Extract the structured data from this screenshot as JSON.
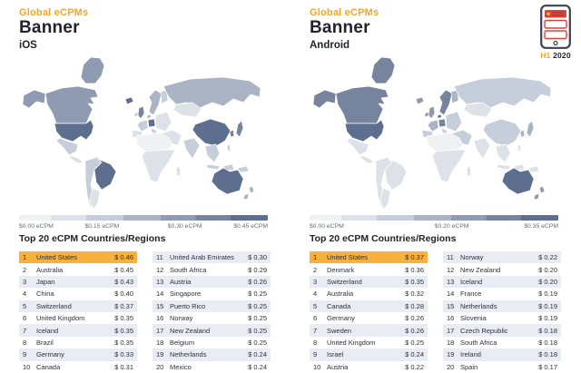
{
  "currency_prefix": "$ ",
  "badge": {
    "h1_label": "H1",
    "year_label": "2020"
  },
  "accent_orange": "#f5a623",
  "highlight_row_color": "#f8b13c",
  "palette": {
    "L0": "#eff1f4",
    "L1": "#dde2e9",
    "L2": "#c7cedb",
    "L3": "#aab4c5",
    "L4": "#8f9bb1",
    "L5": "#76849e",
    "L6": "#5d6e8e"
  },
  "panels": [
    {
      "id": "ios",
      "eyebrow": "Global eCPMs",
      "title": "Banner",
      "platform": "iOS",
      "legend": {
        "max": 0.45,
        "stops": [
          {
            "value": 0.0,
            "label": "$0.00 eCPM"
          },
          {
            "value": 0.15,
            "label": "$0.15 eCPM"
          },
          {
            "value": 0.3,
            "label": "$0.30 eCPM"
          },
          {
            "value": 0.45,
            "label": "$0.45 eCPM"
          }
        ]
      },
      "table_title": "Top 20 eCPM Countries/Regions",
      "rows": [
        {
          "rank": 1,
          "country": "United States",
          "value": 0.46
        },
        {
          "rank": 2,
          "country": "Australia",
          "value": 0.45
        },
        {
          "rank": 3,
          "country": "Japan",
          "value": 0.43
        },
        {
          "rank": 4,
          "country": "China",
          "value": 0.4
        },
        {
          "rank": 5,
          "country": "Switzerland",
          "value": 0.37
        },
        {
          "rank": 6,
          "country": "United Kingdom",
          "value": 0.35
        },
        {
          "rank": 7,
          "country": "Iceland",
          "value": 0.35
        },
        {
          "rank": 8,
          "country": "Brazil",
          "value": 0.35
        },
        {
          "rank": 9,
          "country": "Germany",
          "value": 0.33
        },
        {
          "rank": 10,
          "country": "Canada",
          "value": 0.31
        },
        {
          "rank": 11,
          "country": "United Arab Emirates",
          "value": 0.3
        },
        {
          "rank": 12,
          "country": "South Africa",
          "value": 0.29
        },
        {
          "rank": 13,
          "country": "Austria",
          "value": 0.26
        },
        {
          "rank": 14,
          "country": "Singapore",
          "value": 0.25
        },
        {
          "rank": 15,
          "country": "Puerto Rico",
          "value": 0.25
        },
        {
          "rank": 16,
          "country": "Norway",
          "value": 0.25
        },
        {
          "rank": 17,
          "country": "New Zealand",
          "value": 0.25
        },
        {
          "rank": 18,
          "country": "Belgium",
          "value": 0.25
        },
        {
          "rank": 19,
          "country": "Netherlands",
          "value": 0.24
        },
        {
          "rank": 20,
          "country": "Mexico",
          "value": 0.24
        }
      ]
    },
    {
      "id": "android",
      "eyebrow": "Global eCPMs",
      "title": "Banner",
      "platform": "Android",
      "legend": {
        "max": 0.35,
        "stops": [
          {
            "value": 0.0,
            "label": "$0.00 eCPM"
          },
          {
            "value": 0.2,
            "label": "$0.20 eCPM"
          },
          {
            "value": 0.35,
            "label": "$0.35 eCPM"
          }
        ]
      },
      "table_title": "Top 20 eCPM Countries/Regions",
      "rows": [
        {
          "rank": 1,
          "country": "United States",
          "value": 0.37
        },
        {
          "rank": 2,
          "country": "Denmark",
          "value": 0.36
        },
        {
          "rank": 3,
          "country": "Switzerland",
          "value": 0.35
        },
        {
          "rank": 4,
          "country": "Australia",
          "value": 0.32
        },
        {
          "rank": 5,
          "country": "Canada",
          "value": 0.28
        },
        {
          "rank": 6,
          "country": "Germany",
          "value": 0.26
        },
        {
          "rank": 7,
          "country": "Sweden",
          "value": 0.26
        },
        {
          "rank": 8,
          "country": "United Kingdom",
          "value": 0.25
        },
        {
          "rank": 9,
          "country": "Israel",
          "value": 0.24
        },
        {
          "rank": 10,
          "country": "Austria",
          "value": 0.22
        },
        {
          "rank": 11,
          "country": "Norway",
          "value": 0.22
        },
        {
          "rank": 12,
          "country": "New Zealand",
          "value": 0.2
        },
        {
          "rank": 13,
          "country": "Iceland",
          "value": 0.2
        },
        {
          "rank": 14,
          "country": "France",
          "value": 0.19
        },
        {
          "rank": 15,
          "country": "Netherlands",
          "value": 0.19
        },
        {
          "rank": 16,
          "country": "Slovenia",
          "value": 0.19
        },
        {
          "rank": 17,
          "country": "Czech Republic",
          "value": 0.18
        },
        {
          "rank": 18,
          "country": "South Africa",
          "value": 0.18
        },
        {
          "rank": 19,
          "country": "Ireland",
          "value": 0.18
        },
        {
          "rank": 20,
          "country": "Spain",
          "value": 0.17
        }
      ]
    }
  ],
  "map_regions": {
    "ios": {
      "greenland": "L4",
      "alaska": "L4",
      "canada": "L4",
      "usa": "L6",
      "mexico": "L2",
      "central_america": "L1",
      "sa_nw": "L2",
      "brazil": "L6",
      "argentina": "L1",
      "iceland": "L6",
      "ireland": "L2",
      "uk": "L5",
      "scandinavia": "L3",
      "finland": "L2",
      "denmark": "L3",
      "germany": "L6",
      "france": "L2",
      "iberia": "L1",
      "italy": "L2",
      "east_europe": "L1",
      "russia": "L3",
      "central_asia": "L1",
      "middle_east": "L1",
      "africa_n": "L0",
      "africa_s": "L1",
      "madagascar": "L1",
      "india": "L2",
      "china": "L6",
      "korea": "L5",
      "japan": "L5",
      "se_asia": "L2",
      "philippines": "L2",
      "indonesia": "L2",
      "png": "L2",
      "australia": "L6",
      "new_zealand": "L3"
    },
    "android": {
      "greenland": "L5",
      "alaska": "L5",
      "canada": "L5",
      "usa": "L6",
      "mexico": "L1",
      "central_america": "L1",
      "sa_nw": "L1",
      "brazil": "L1",
      "argentina": "L1",
      "iceland": "L4",
      "ireland": "L4",
      "uk": "L4",
      "scandinavia": "L5",
      "finland": "L3",
      "denmark": "L6",
      "germany": "L5",
      "france": "L3",
      "iberia": "L2",
      "italy": "L2",
      "east_europe": "L2",
      "russia": "L2",
      "central_asia": "L1",
      "middle_east": "L2",
      "africa_n": "L0",
      "africa_s": "L1",
      "madagascar": "L1",
      "india": "L1",
      "china": "L2",
      "korea": "L3",
      "japan": "L3",
      "se_asia": "L1",
      "philippines": "L1",
      "indonesia": "L1",
      "png": "L1",
      "australia": "L6",
      "new_zealand": "L4"
    }
  },
  "chart_data": [
    {
      "type": "heatmap",
      "subtype": "world-choropleth",
      "title": "Global eCPMs — Banner — iOS — H1 2020",
      "unit": "USD eCPM",
      "colorbar_range": [
        0,
        0.45
      ],
      "colorbar_ticks": [
        "$0.00 eCPM",
        "$0.15 eCPM",
        "$0.30 eCPM",
        "$0.45 eCPM"
      ],
      "legend_position": "below-map",
      "categories": [
        "United States",
        "Australia",
        "Japan",
        "China",
        "Switzerland",
        "United Kingdom",
        "Iceland",
        "Brazil",
        "Germany",
        "Canada",
        "United Arab Emirates",
        "South Africa",
        "Austria",
        "Singapore",
        "Puerto Rico",
        "Norway",
        "New Zealand",
        "Belgium",
        "Netherlands",
        "Mexico"
      ],
      "values": [
        0.46,
        0.45,
        0.43,
        0.4,
        0.37,
        0.35,
        0.35,
        0.35,
        0.33,
        0.31,
        0.3,
        0.29,
        0.26,
        0.25,
        0.25,
        0.25,
        0.25,
        0.25,
        0.24,
        0.24
      ]
    },
    {
      "type": "heatmap",
      "subtype": "world-choropleth",
      "title": "Global eCPMs — Banner — Android — H1 2020",
      "unit": "USD eCPM",
      "colorbar_range": [
        0,
        0.35
      ],
      "colorbar_ticks": [
        "$0.00 eCPM",
        "$0.20 eCPM",
        "$0.35 eCPM"
      ],
      "legend_position": "below-map",
      "categories": [
        "United States",
        "Denmark",
        "Switzerland",
        "Australia",
        "Canada",
        "Germany",
        "Sweden",
        "United Kingdom",
        "Israel",
        "Austria",
        "Norway",
        "New Zealand",
        "Iceland",
        "France",
        "Netherlands",
        "Slovenia",
        "Czech Republic",
        "South Africa",
        "Ireland",
        "Spain"
      ],
      "values": [
        0.37,
        0.36,
        0.35,
        0.32,
        0.28,
        0.26,
        0.26,
        0.25,
        0.24,
        0.22,
        0.22,
        0.2,
        0.2,
        0.19,
        0.19,
        0.19,
        0.18,
        0.18,
        0.18,
        0.17
      ]
    }
  ]
}
